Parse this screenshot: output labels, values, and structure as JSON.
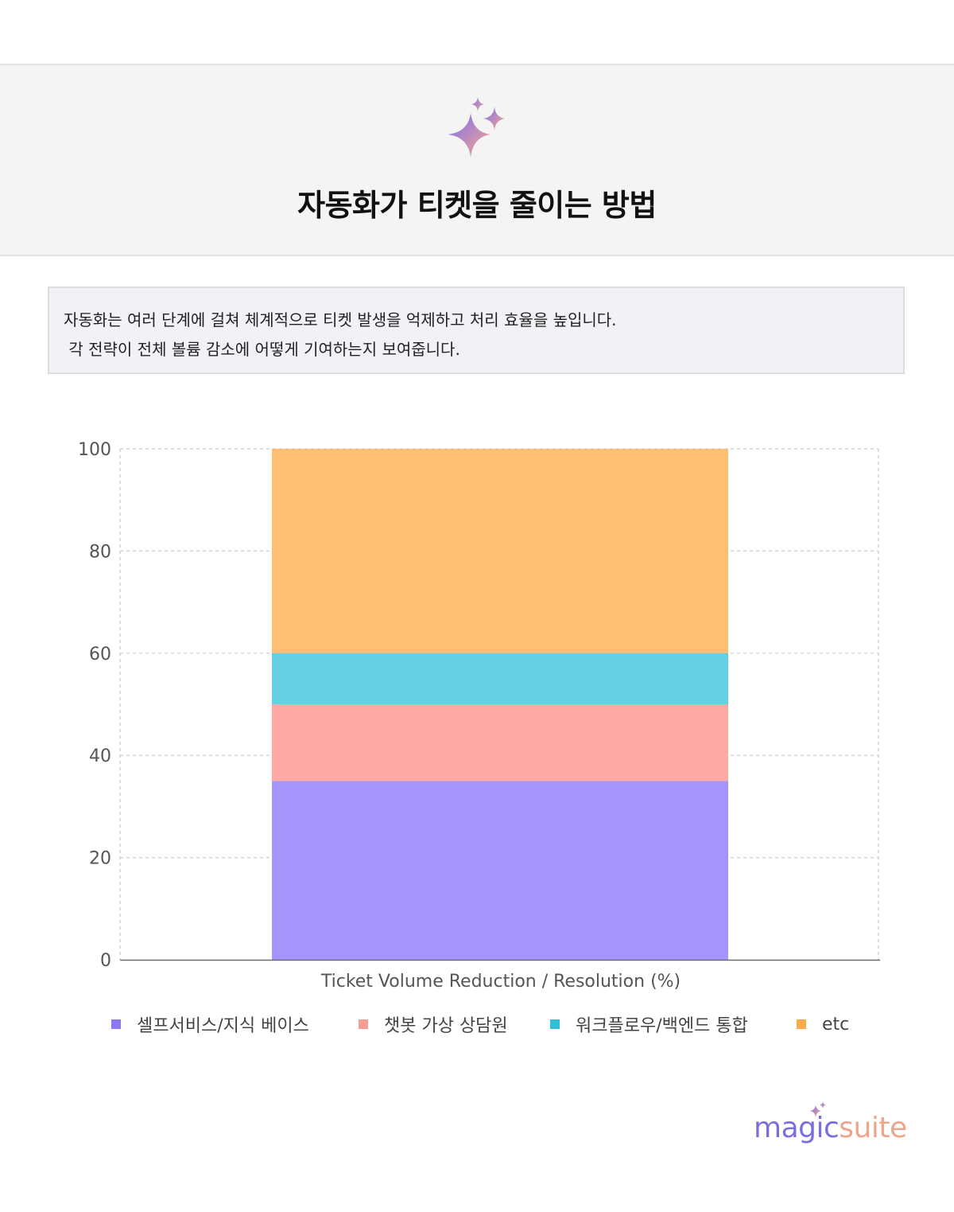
{
  "header": {
    "title": "자동화가 티켓을 줄이는 방법",
    "icon": "sparkles-icon"
  },
  "description": {
    "line1": "자동화는 여러 단계에 걸쳐 체계적으로 티켓 발생을 억제하고 처리 효율을 높입니다.",
    "line2": " 각 전략이 전체 볼륨 감소에 어떻게 기여하는지 보여줍니다."
  },
  "chart_data": {
    "type": "bar",
    "stacked": true,
    "categories": [
      ""
    ],
    "xlabel": "Ticket Volume Reduction / Resolution (%)",
    "ylabel": "",
    "ylim": [
      0,
      100
    ],
    "yticks": [
      0,
      20,
      40,
      60,
      80,
      100
    ],
    "grid": true,
    "legend_position": "bottom",
    "series": [
      {
        "name": "셀프서비스/지식 베이스",
        "values": [
          35
        ],
        "color": "#a395fc"
      },
      {
        "name": "챗봇 가상 상담원",
        "values": [
          15
        ],
        "color": "#fea9a1"
      },
      {
        "name": "워크플로우/백엔드 통합",
        "values": [
          10
        ],
        "color": "#63d0e3"
      },
      {
        "name": "etc",
        "values": [
          40
        ],
        "color": "#febe74"
      }
    ],
    "legend_colors": [
      "#8b78f5",
      "#f59c94",
      "#35bdd6",
      "#fbab45"
    ]
  },
  "brand": {
    "magic": "magic",
    "suite": "suite",
    "icon": "sparkles-logo-icon"
  }
}
